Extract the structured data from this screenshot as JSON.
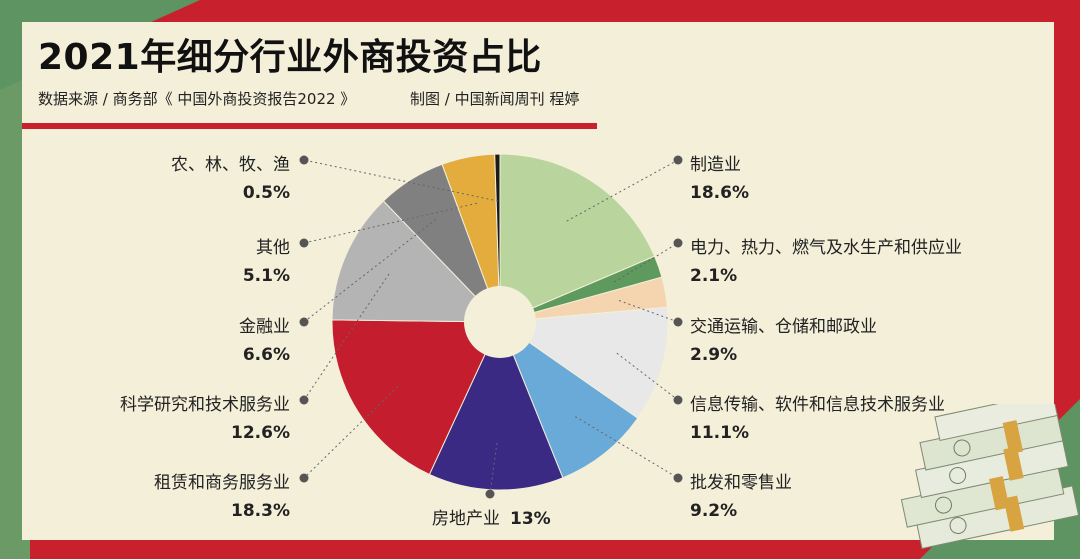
{
  "title": "2021年细分行业外商投资占比",
  "source": "数据来源 / 商务部《 中国外商投资报告2022 》",
  "credit": "制图 / 中国新闻周刊  程婷",
  "chart_data": {
    "type": "pie",
    "title": "2021年细分行业外商投资占比",
    "donut": true,
    "slices": [
      {
        "label": "制造业",
        "value": 18.6,
        "text": "18.6%",
        "color": "#b9d49c"
      },
      {
        "label": "电力、热力、燃气及水生产和供应业",
        "value": 2.1,
        "text": "2.1%",
        "color": "#5e9a5e"
      },
      {
        "label": "交通运输、仓储和邮政业",
        "value": 2.9,
        "text": "2.9%",
        "color": "#f5d5b0"
      },
      {
        "label": "信息传输、软件和信息技术服务业",
        "value": 11.1,
        "text": "11.1%",
        "color": "#e8e8e8"
      },
      {
        "label": "批发和零售业",
        "value": 9.2,
        "text": "9.2%",
        "color": "#6aaad8"
      },
      {
        "label": "房地产业",
        "value": 13,
        "text": "13%",
        "color": "#3a2a84"
      },
      {
        "label": "租赁和商务服务业",
        "value": 18.3,
        "text": "18.3%",
        "color": "#c41e2e"
      },
      {
        "label": "科学研究和技术服务业",
        "value": 12.6,
        "text": "12.6%",
        "color": "#b4b4b4"
      },
      {
        "label": "金融业",
        "value": 6.6,
        "text": "6.6%",
        "color": "#808080"
      },
      {
        "label": "其他",
        "value": 5.1,
        "text": "5.1%",
        "color": "#e3ac3c"
      },
      {
        "label": "农、林、牧、渔",
        "value": 0.5,
        "text": "0.5%",
        "color": "#1a1a1a"
      }
    ]
  }
}
